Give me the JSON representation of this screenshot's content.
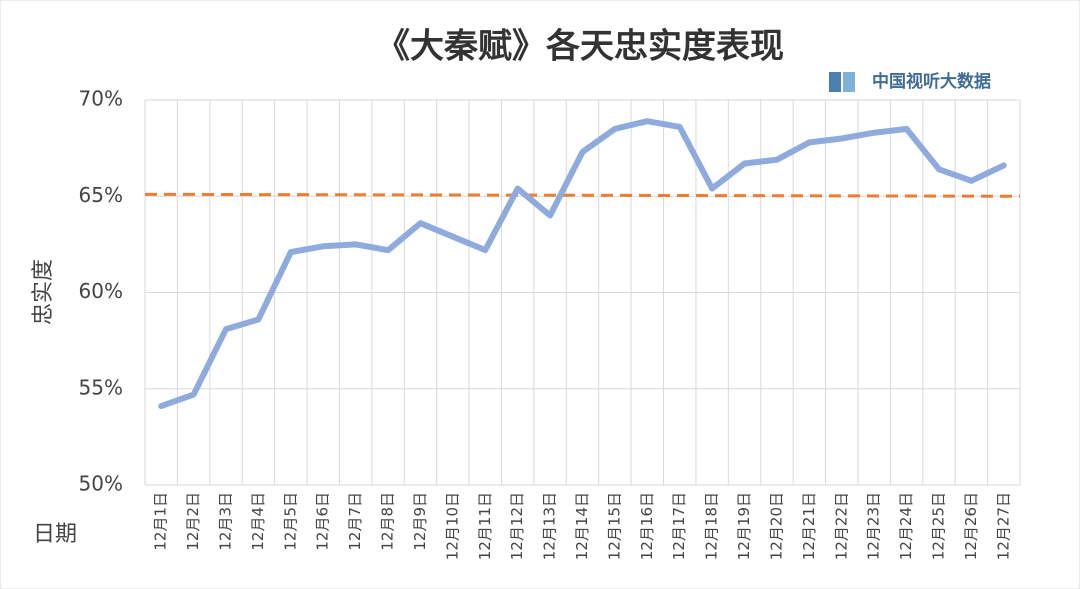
{
  "chart_data": {
    "type": "line",
    "title": "《大秦赋》各天忠实度表现",
    "watermark": "中国视听大数据",
    "y_label": "忠实度",
    "x_label": "日期",
    "categories": [
      "12月1日",
      "12月2日",
      "12月3日",
      "12月4日",
      "12月5日",
      "12月6日",
      "12月7日",
      "12月8日",
      "12月9日",
      "12月10日",
      "12月11日",
      "12月12日",
      "12月13日",
      "12月14日",
      "12月15日",
      "12月16日",
      "12月17日",
      "12月18日",
      "12月19日",
      "12月20日",
      "12月21日",
      "12月22日",
      "12月23日",
      "12月24日",
      "12月25日",
      "12月26日",
      "12月27日"
    ],
    "series": [
      {
        "color": "#8faadc",
        "values": [
          54.1,
          54.7,
          58.1,
          58.6,
          62.1,
          62.4,
          62.5,
          62.2,
          63.6,
          62.9,
          62.2,
          65.4,
          64.0,
          67.3,
          68.5,
          68.9,
          68.6,
          65.4,
          66.7,
          66.9,
          67.8,
          68.0,
          68.3,
          68.5,
          66.4,
          65.8,
          66.6
        ]
      }
    ],
    "trend_line": {
      "start": 65.1,
      "end": 65.0,
      "color": "#ed7d31"
    },
    "ylim": [
      50,
      70
    ],
    "yticks": [
      {
        "value": 50,
        "label": "50%"
      },
      {
        "value": 55,
        "label": "55%"
      },
      {
        "value": 60,
        "label": "60%"
      },
      {
        "value": 65,
        "label": "65%"
      },
      {
        "value": 70,
        "label": "70%"
      }
    ],
    "grid": true
  }
}
